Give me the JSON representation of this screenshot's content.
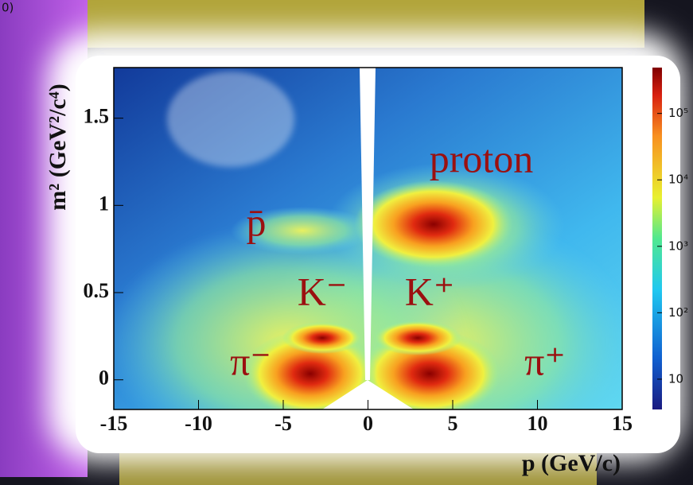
{
  "chart_data": {
    "type": "heatmap",
    "corner_text": "0)",
    "xlabel": "p (GeV/c)",
    "ylabel": "m² (GeV²/c⁴)",
    "xlim": [
      -15,
      15
    ],
    "xticks": [
      -15,
      -10,
      -5,
      0,
      5,
      10,
      15
    ],
    "ylim": [
      -0.17,
      1.79
    ],
    "yticks": [
      0,
      0.5,
      1,
      1.5
    ],
    "colorbar": {
      "log": true,
      "clim": [
        3.5,
        490000
      ],
      "ticks": [
        10,
        {
          "value": 100,
          "label": "10²"
        },
        {
          "value": 1000,
          "label": "10³"
        },
        {
          "value": 10000,
          "label": "10⁴"
        },
        {
          "value": 100000,
          "label": "10⁵"
        }
      ]
    },
    "annotations": [
      "proton",
      "p̄",
      "K⁻",
      "K⁺",
      "π⁻",
      "π⁺"
    ]
  }
}
